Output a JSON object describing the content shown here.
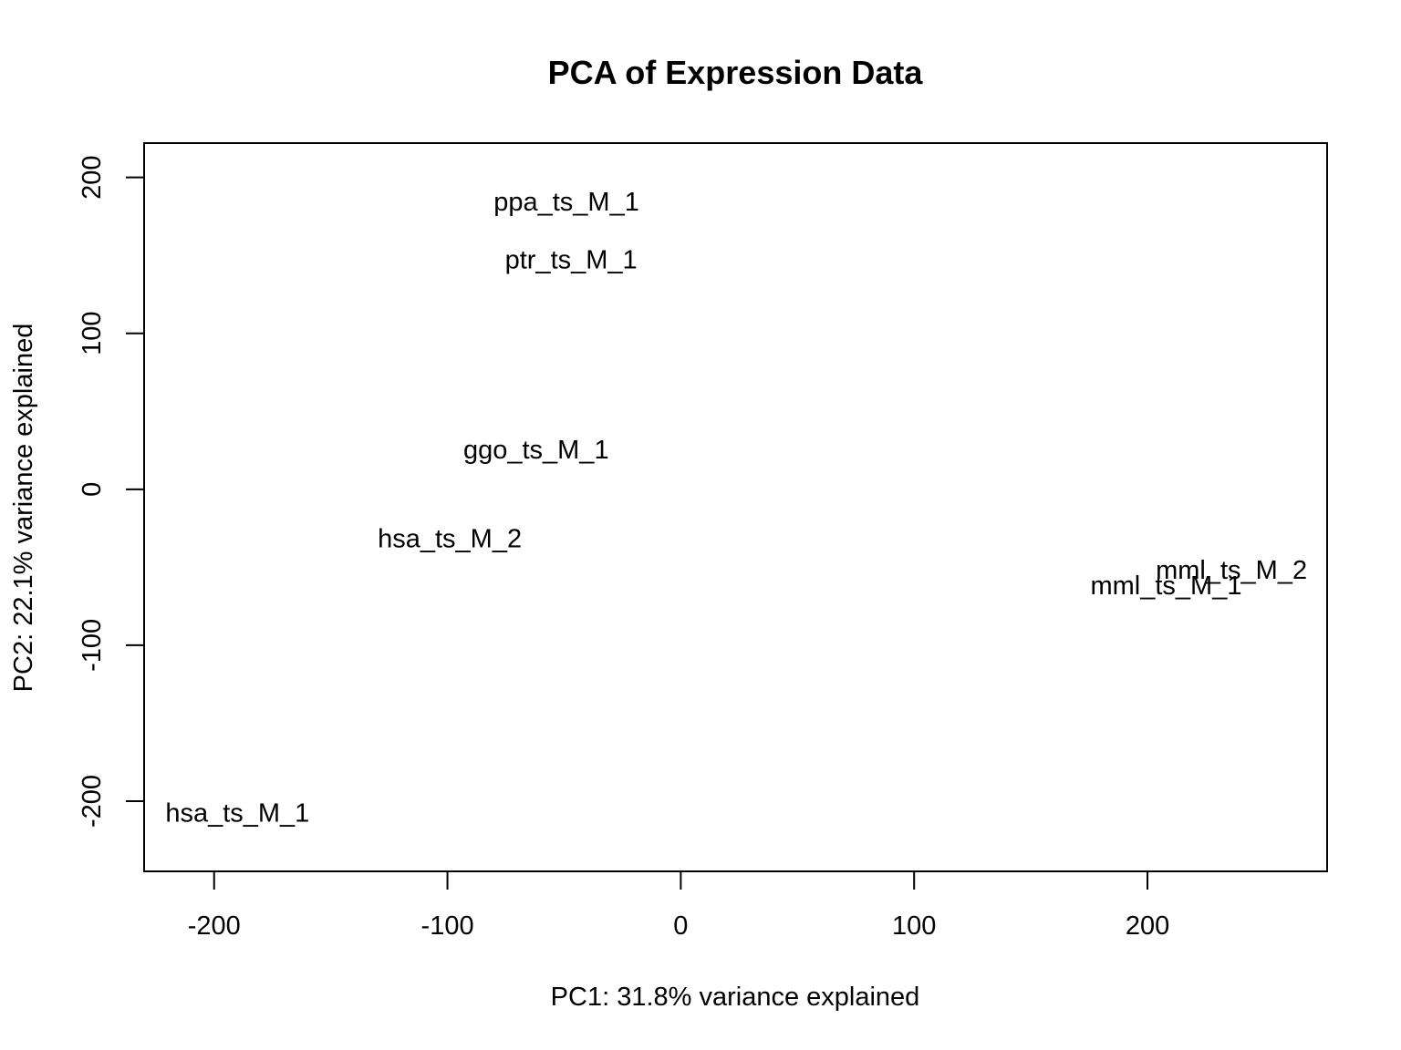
{
  "chart_data": {
    "type": "scatter",
    "title": "PCA of Expression Data",
    "xlabel": "PC1: 31.8% variance explained",
    "ylabel": "PC2: 22.1% variance explained",
    "xlim": [
      -230,
      277
    ],
    "ylim": [
      -245,
      222
    ],
    "x_ticks": [
      -200,
      -100,
      0,
      100,
      200
    ],
    "y_ticks": [
      -200,
      -100,
      0,
      100,
      200
    ],
    "x_tick_labels": [
      "-200",
      "-100",
      "0",
      "100",
      "200"
    ],
    "y_tick_labels": [
      "-200",
      "-100",
      "0",
      "100",
      "200"
    ],
    "marker": "text-label",
    "points": [
      {
        "label": "ppa_ts_M_1",
        "x": -49,
        "y": 184
      },
      {
        "label": "ptr_ts_M_1",
        "x": -47,
        "y": 147
      },
      {
        "label": "ggo_ts_M_1",
        "x": -62,
        "y": 25
      },
      {
        "label": "hsa_ts_M_2",
        "x": -99,
        "y": -32
      },
      {
        "label": "mml_ts_M_2",
        "x": 236,
        "y": -52
      },
      {
        "label": "mml_ts_M_1",
        "x": 208,
        "y": -62
      },
      {
        "label": "hsa_ts_M_1",
        "x": -190,
        "y": -208
      }
    ]
  }
}
